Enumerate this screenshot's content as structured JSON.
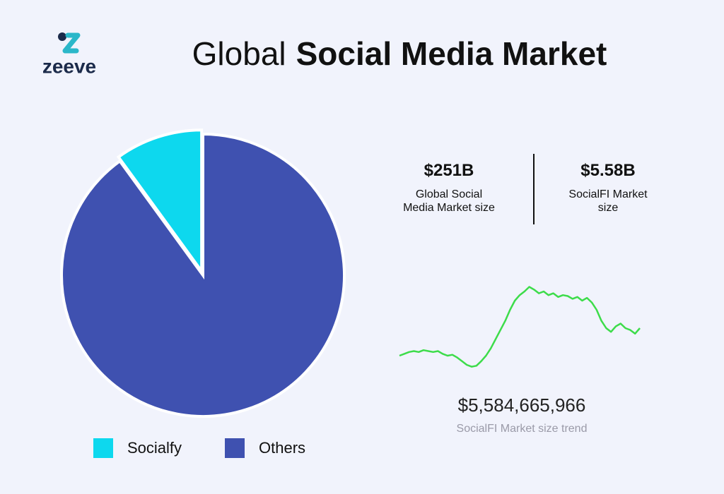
{
  "header": {
    "logo": "zeeve",
    "title_light": "Global",
    "title_bold": "Social Media Market"
  },
  "stats": [
    {
      "value": "$251B",
      "label": "Global Social Media Market size"
    },
    {
      "value": "$5.58B",
      "label": "SocialFI Market size"
    }
  ],
  "chart_data": [
    {
      "type": "pie",
      "categories": [
        "Socialfy",
        "Others"
      ],
      "values": [
        10,
        90
      ],
      "colors": [
        "#0dd8ee",
        "#3f51b0"
      ],
      "legend": "bottom"
    },
    {
      "type": "line",
      "annotation": "$5,584,665,966",
      "caption": "SocialFI Market size trend",
      "color": "#3ddc4a",
      "ylim": [
        0,
        100
      ],
      "values": [
        20,
        22,
        24,
        25,
        24,
        26,
        25,
        24,
        25,
        22,
        20,
        21,
        18,
        14,
        10,
        8,
        9,
        14,
        20,
        28,
        38,
        48,
        58,
        70,
        80,
        86,
        90,
        95,
        92,
        88,
        90,
        86,
        88,
        84,
        86,
        85,
        82,
        84,
        80,
        83,
        78,
        70,
        58,
        50,
        46,
        52,
        55,
        50,
        48,
        44,
        50
      ]
    }
  ]
}
